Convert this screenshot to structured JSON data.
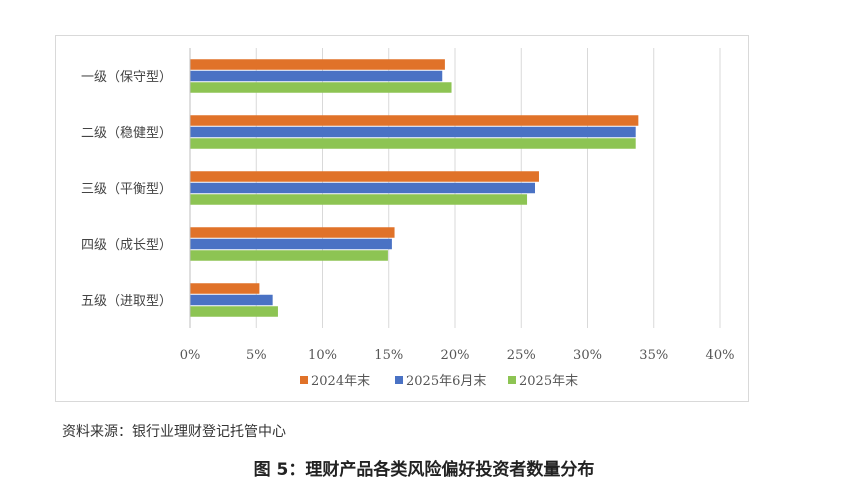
{
  "chart_data": {
    "type": "bar",
    "orientation": "horizontal",
    "categories": [
      "一级（保守型）",
      "二级（稳健型）",
      "三级（平衡型）",
      "四级（成长型）",
      "五级（进取型）"
    ],
    "series": [
      {
        "name": "2024年末",
        "color": "#E07229",
        "values": [
          19.2,
          33.8,
          26.3,
          15.4,
          5.2
        ]
      },
      {
        "name": "2025年6月末",
        "color": "#4A72C4",
        "values": [
          19.0,
          33.6,
          26.0,
          15.2,
          6.2
        ]
      },
      {
        "name": "2025年末",
        "color": "#8DC453",
        "values": [
          19.7,
          33.6,
          25.4,
          14.9,
          6.6
        ]
      }
    ],
    "xlim": [
      0,
      40
    ],
    "xticks": [
      "0%",
      "5%",
      "10%",
      "15%",
      "20%",
      "25%",
      "30%",
      "35%",
      "40%"
    ],
    "grid": "vertical",
    "legend_position": "bottom"
  },
  "source_note": "资料来源：银行业理财登记托管中心",
  "caption": "图 5：理财产品各类风险偏好投资者数量分布"
}
